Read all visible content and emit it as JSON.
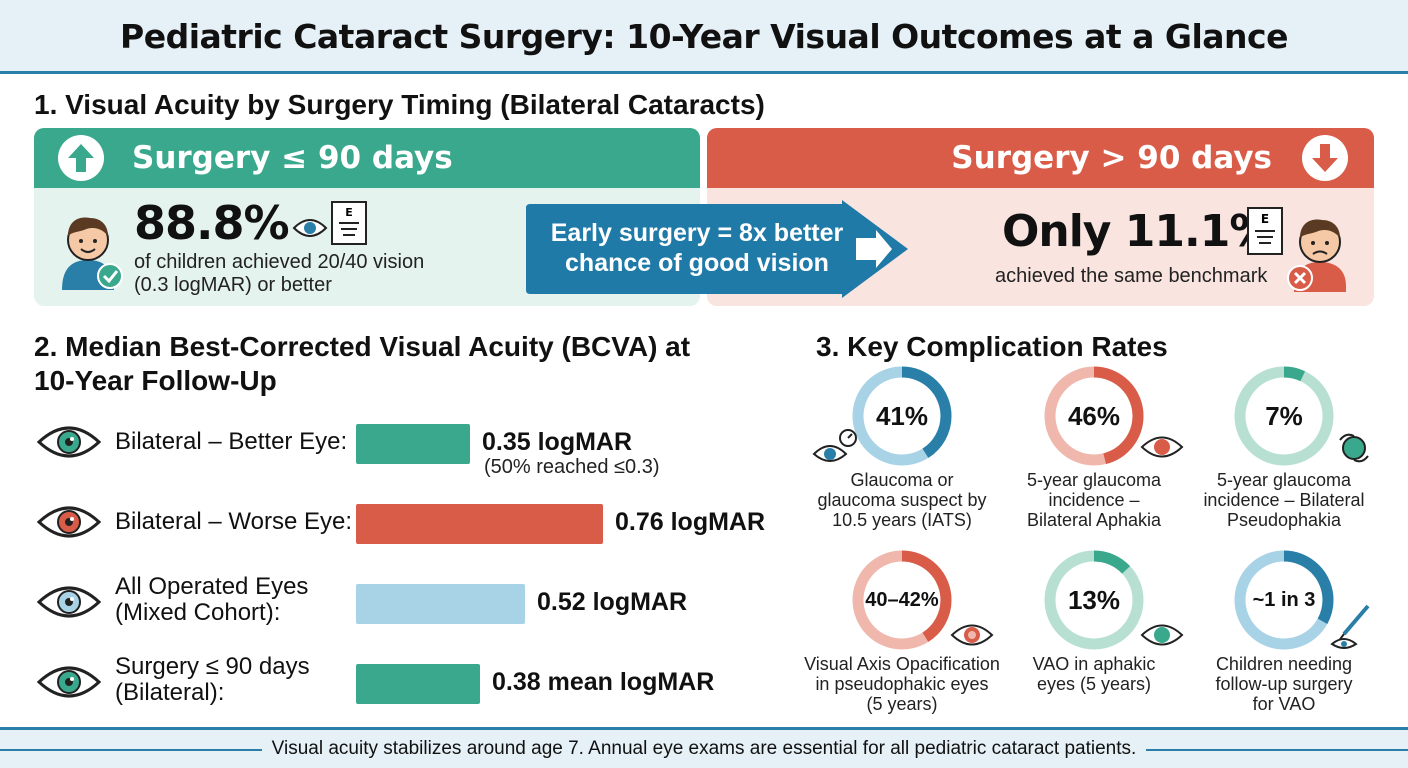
{
  "title": "Pediatric Cataract Surgery: 10-Year Visual Outcomes at a Glance",
  "section1": {
    "heading": "1. Visual Acuity by Surgery Timing (Bilateral Cataracts)",
    "early": {
      "label": "Surgery ≤ 90 days",
      "stat": "88.8%",
      "desc_line1": "of children achieved 20/40 vision",
      "desc_line2": "(0.3 logMAR) or better",
      "color": "#3aa88c"
    },
    "late": {
      "label": "Surgery > 90 days",
      "stat": "Only 11.1%",
      "desc": "achieved the same benchmark",
      "color": "#d85c48"
    },
    "banner_line1": "Early surgery = 8x better",
    "banner_line2": "chance of good vision"
  },
  "section2": {
    "heading_line1": "2. Median Best-Corrected Visual Acuity (BCVA) at",
    "heading_line2": "10-Year Follow-Up",
    "rows": [
      {
        "label_line1": "Bilateral – Better Eye:",
        "label_line2": "",
        "value": "0.35 logMAR",
        "note": "(50% reached ≤0.3)",
        "color": "#3aa88c"
      },
      {
        "label_line1": "Bilateral – Worse Eye:",
        "label_line2": "",
        "value": "0.76 logMAR",
        "note": "",
        "color": "#d85c48"
      },
      {
        "label_line1": "All Operated Eyes",
        "label_line2": "(Mixed Cohort):",
        "value": "0.52 logMAR",
        "note": "",
        "color": "#a8d3e6"
      },
      {
        "label_line1": "Surgery ≤ 90 days",
        "label_line2": "(Bilateral):",
        "value": "0.38 mean logMAR",
        "note": "",
        "color": "#3aa88c"
      }
    ]
  },
  "section3": {
    "heading": "3. Key Complication Rates",
    "rings": [
      {
        "label": "41%",
        "fraction": 0.41,
        "color": "#2a7fa8",
        "track": "#a8d3e6",
        "cap1": "Glaucoma or",
        "cap2": "glaucoma suspect by",
        "cap3": "10.5 years (IATS)"
      },
      {
        "label": "46%",
        "fraction": 0.46,
        "color": "#d85c48",
        "track": "#f0b8ac",
        "cap1": "5-year glaucoma",
        "cap2": "incidence –",
        "cap3": "Bilateral Aphakia"
      },
      {
        "label": "7%",
        "fraction": 0.07,
        "color": "#3aa88c",
        "track": "#b7e0d3",
        "cap1": "5-year glaucoma",
        "cap2": "incidence – Bilateral",
        "cap3": "Pseudophakia"
      },
      {
        "label": "40–42%",
        "fraction": 0.41,
        "color": "#d85c48",
        "track": "#f0b8ac",
        "cap1": "Visual Axis Opacification",
        "cap2": "in pseudophakic eyes",
        "cap3": "(5 years)"
      },
      {
        "label": "13%",
        "fraction": 0.13,
        "color": "#3aa88c",
        "track": "#b7e0d3",
        "cap1": "VAO in aphakic",
        "cap2": "eyes (5 years)",
        "cap3": ""
      },
      {
        "label": "~1 in 3",
        "fraction": 0.33,
        "color": "#2a7fa8",
        "track": "#a8d3e6",
        "cap1": "Children needing",
        "cap2": "follow-up surgery",
        "cap3": "for VAO"
      }
    ]
  },
  "footer": "Visual acuity stabilizes around age 7. Annual eye exams are essential for all pediatric cataract patients."
}
